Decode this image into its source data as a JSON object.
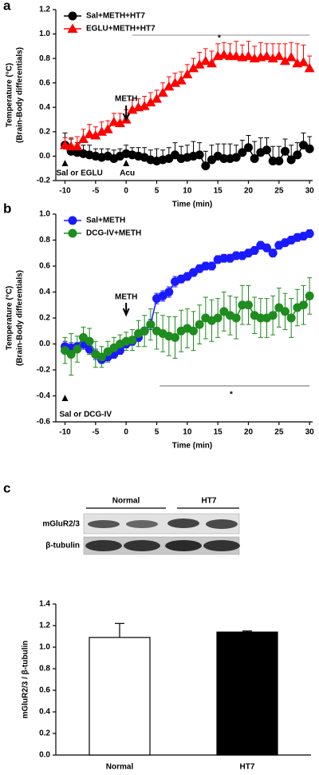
{
  "chart_data": [
    {
      "type": "line",
      "panel": "a",
      "xlabel": "Time (min)",
      "ylabel": [
        "Temperature (°C)",
        "(Brain-Body differentials)"
      ],
      "x": [
        -10,
        -9,
        -8,
        -7,
        -6,
        -5,
        -4,
        -3,
        -2,
        -1,
        0,
        1,
        2,
        3,
        4,
        5,
        6,
        7,
        8,
        9,
        10,
        11,
        12,
        13,
        14,
        15,
        16,
        17,
        18,
        19,
        20,
        21,
        22,
        23,
        24,
        25,
        26,
        27,
        28,
        29,
        30
      ],
      "error_bars": "upper",
      "series": [
        {
          "name": "Sal+METH+HT7",
          "color": "#000000",
          "marker": "circle",
          "values": [
            0.09,
            0.04,
            0.03,
            0.02,
            0.01,
            0.0,
            -0.01,
            0.0,
            -0.02,
            0.0,
            0.02,
            0.01,
            0.0,
            -0.01,
            -0.03,
            -0.04,
            -0.03,
            -0.02,
            0.01,
            -0.02,
            -0.01,
            0.0,
            0.01,
            -0.08,
            -0.03,
            0.0,
            -0.02,
            -0.02,
            -0.01,
            0.03,
            0.07,
            -0.02,
            0.03,
            0.05,
            -0.04,
            -0.04,
            0.04,
            -0.03,
            0.01,
            0.09,
            0.06
          ],
          "errors": [
            0.1,
            0.1,
            0.08,
            0.07,
            0.08,
            0.06,
            0.07,
            0.06,
            0.07,
            0.06,
            0.07,
            0.06,
            0.07,
            0.08,
            0.08,
            0.1,
            0.08,
            0.09,
            0.1,
            0.1,
            0.1,
            0.12,
            0.1,
            0.12,
            0.12,
            0.1,
            0.12,
            0.12,
            0.1,
            0.1,
            0.1,
            0.14,
            0.12,
            0.1,
            0.12,
            0.12,
            0.1,
            0.12,
            0.1,
            0.1,
            0.1
          ]
        },
        {
          "name": "EGLU+METH+HT7",
          "color": "#ff0000",
          "marker": "triangle",
          "values": [
            0.09,
            0.08,
            0.08,
            0.14,
            0.18,
            0.17,
            0.2,
            0.22,
            0.28,
            0.27,
            0.3,
            0.38,
            0.4,
            0.41,
            0.44,
            0.47,
            0.52,
            0.57,
            0.6,
            0.62,
            0.67,
            0.72,
            0.75,
            0.78,
            0.76,
            0.82,
            0.83,
            0.82,
            0.82,
            0.81,
            0.82,
            0.8,
            0.81,
            0.82,
            0.8,
            0.82,
            0.78,
            0.81,
            0.76,
            0.77,
            0.72
          ],
          "errors": [
            0.06,
            0.07,
            0.08,
            0.08,
            0.08,
            0.07,
            0.08,
            0.07,
            0.07,
            0.08,
            0.08,
            0.08,
            0.07,
            0.08,
            0.08,
            0.07,
            0.08,
            0.08,
            0.08,
            0.07,
            0.08,
            0.08,
            0.1,
            0.1,
            0.1,
            0.1,
            0.1,
            0.1,
            0.12,
            0.1,
            0.12,
            0.1,
            0.12,
            0.1,
            0.12,
            0.1,
            0.14,
            0.12,
            0.16,
            0.14,
            0.1
          ]
        }
      ],
      "xlim": [
        -11.5,
        30.5
      ],
      "xticks": [
        -10,
        -5,
        0,
        5,
        10,
        15,
        20,
        25,
        30
      ],
      "ylim": [
        -0.2,
        1.2
      ],
      "yticks": [
        -0.2,
        {
          "value": 0,
          "label": "0.0"
        },
        0.2,
        0.4,
        0.6,
        0.8,
        {
          "value": 1,
          "label": "1.0"
        },
        1.2
      ],
      "annotations": {
        "arrow": "METH",
        "start": "Sal or EGLU",
        "second": "Acu",
        "significance": "*"
      }
    },
    {
      "type": "line",
      "panel": "b",
      "xlabel": "Time (min)",
      "ylabel": [
        "Temperature (°C)",
        "(Brain-Body differentials)"
      ],
      "x": [
        -10,
        -9,
        -8,
        -7,
        -6,
        -5,
        -4,
        -3,
        -2,
        -1,
        0,
        1,
        2,
        3,
        4,
        5,
        6,
        7,
        8,
        9,
        10,
        11,
        12,
        13,
        14,
        15,
        16,
        17,
        18,
        19,
        20,
        21,
        22,
        23,
        24,
        25,
        26,
        27,
        28,
        29,
        30
      ],
      "error_bars": "both",
      "series": [
        {
          "name": "Sal+METH",
          "color": "#1a1aff",
          "marker": "circle",
          "values": [
            -0.02,
            -0.03,
            -0.02,
            0.0,
            -0.04,
            -0.08,
            -0.12,
            -0.1,
            -0.08,
            -0.05,
            0.0,
            0.02,
            0.05,
            0.1,
            0.15,
            0.35,
            0.37,
            0.4,
            0.48,
            0.5,
            0.52,
            0.55,
            0.58,
            0.6,
            0.6,
            0.65,
            0.66,
            0.66,
            0.68,
            0.68,
            0.7,
            0.72,
            0.76,
            0.74,
            0.7,
            0.76,
            0.78,
            0.8,
            0.82,
            0.83,
            0.85
          ],
          "errors": [
            0.04,
            0.04,
            0.03,
            0.04,
            0.03,
            0.04,
            0.03,
            0.03,
            0.03,
            0.03,
            0.03,
            0.03,
            0.03,
            0.03,
            0.04,
            0.04,
            0.04,
            0.04,
            0.04,
            0.03,
            0.03,
            0.03,
            0.03,
            0.03,
            0.03,
            0.03,
            0.03,
            0.03,
            0.03,
            0.03,
            0.03,
            0.03,
            0.03,
            0.03,
            0.03,
            0.03,
            0.03,
            0.03,
            0.03,
            0.03,
            0.03
          ]
        },
        {
          "name": "DCG-IV+METH",
          "color": "#1e8c1e",
          "marker": "circle",
          "values": [
            -0.05,
            -0.08,
            -0.04,
            0.05,
            0.02,
            -0.08,
            -0.1,
            -0.06,
            -0.03,
            0.0,
            0.02,
            0.03,
            0.08,
            0.1,
            0.15,
            0.1,
            0.08,
            0.06,
            0.05,
            0.1,
            0.12,
            0.1,
            0.15,
            0.2,
            0.18,
            0.2,
            0.25,
            0.22,
            0.2,
            0.3,
            0.3,
            0.22,
            0.2,
            0.2,
            0.22,
            0.28,
            0.25,
            0.2,
            0.28,
            0.3,
            0.37
          ],
          "errors": [
            0.1,
            0.16,
            0.1,
            0.08,
            0.1,
            0.1,
            0.08,
            0.08,
            0.08,
            0.07,
            0.07,
            0.08,
            0.1,
            0.12,
            0.12,
            0.14,
            0.14,
            0.15,
            0.16,
            0.16,
            0.15,
            0.15,
            0.15,
            0.16,
            0.16,
            0.15,
            0.15,
            0.15,
            0.16,
            0.15,
            0.15,
            0.14,
            0.15,
            0.15,
            0.15,
            0.15,
            0.14,
            0.15,
            0.14,
            0.15,
            0.14
          ]
        }
      ],
      "xlim": [
        -11.5,
        30.5
      ],
      "xticks": [
        -10,
        -5,
        0,
        5,
        10,
        15,
        20,
        25,
        30
      ],
      "ylim": [
        -0.6,
        1.0
      ],
      "yticks": [
        -0.6,
        -0.4,
        -0.2,
        {
          "value": 0,
          "label": "0.0"
        },
        0.2,
        0.4,
        0.6,
        0.8,
        {
          "value": 1,
          "label": "1.0"
        }
      ],
      "annotations": {
        "arrow": "METH",
        "start": "Sal or DCG-IV",
        "significance": "*"
      }
    },
    {
      "type": "bar",
      "panel": "c",
      "ylabel": "mGluR2/3 / β-tubulin",
      "blot": {
        "groups": [
          "Normal",
          "HT7"
        ],
        "rows": [
          "mGluR2/3",
          "β-tubulin"
        ]
      },
      "categories": [
        "Normal",
        "HT7"
      ],
      "values": [
        1.09,
        1.14
      ],
      "errors": [
        0.13,
        0.01
      ],
      "colors": [
        "#ffffff",
        "#000000"
      ],
      "ylim": [
        0,
        1.4
      ],
      "yticks": [
        {
          "value": 0,
          "label": "0.0"
        },
        0.2,
        0.4,
        0.6,
        0.8,
        {
          "value": 1,
          "label": "1.0"
        },
        1.2,
        1.4
      ]
    }
  ]
}
